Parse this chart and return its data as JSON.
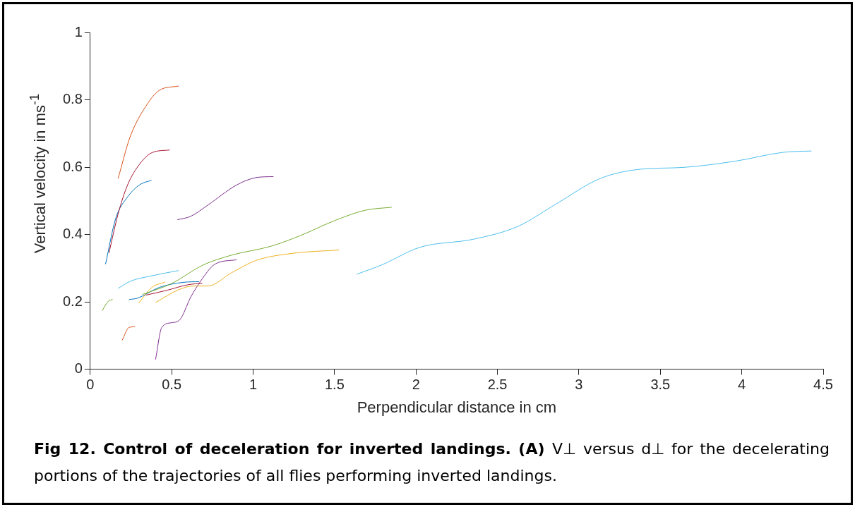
{
  "chart_data": {
    "type": "line",
    "xlabel": "Perpendicular distance in cm",
    "ylabel": "Vertical velocity in ms$^{-1}$",
    "annotations": [
      "Fig 12. Control of deceleration for inverted landings. (A)",
      "V⊥ versus d⊥ for the decelerating portions of the trajectories of all flies performing inverted landings."
    ],
    "xlim": [
      0,
      4.5
    ],
    "xticks": [
      0,
      0.5,
      1,
      1.5,
      2,
      2.5,
      3,
      3.5,
      4,
      4.5
    ],
    "ylim": [
      0,
      1
    ],
    "yticks": [
      0,
      0.2,
      0.4,
      0.6,
      0.8,
      1
    ],
    "grid": false,
    "legend": false,
    "marker": "none",
    "line_style": "solid",
    "series": [
      {
        "color": "#d95319",
        "x": [
          0.171,
          0.245,
          0.357,
          0.424,
          0.543
        ],
        "values": [
          0.566,
          0.69,
          0.792,
          0.828,
          0.841
        ]
      },
      {
        "color": "#a2142f",
        "x": [
          0.115,
          0.171,
          0.23,
          0.305,
          0.379,
          0.488
        ],
        "values": [
          0.345,
          0.461,
          0.548,
          0.61,
          0.643,
          0.651
        ]
      },
      {
        "color": "#0072bd",
        "x": [
          0.094,
          0.156,
          0.23,
          0.305,
          0.376
        ],
        "values": [
          0.312,
          0.447,
          0.512,
          0.548,
          0.561
        ]
      },
      {
        "color": "#7e2f8e",
        "x": [
          0.535,
          0.617,
          0.721,
          0.899,
          1.018,
          1.125
        ],
        "values": [
          0.444,
          0.454,
          0.487,
          0.547,
          0.569,
          0.572
        ]
      },
      {
        "color": "#77ac30",
        "x": [
          0.32,
          0.498,
          0.691,
          0.87,
          1.108,
          1.286,
          1.509,
          1.688,
          1.851
        ],
        "values": [
          0.222,
          0.254,
          0.309,
          0.339,
          0.365,
          0.396,
          0.443,
          0.472,
          0.481
        ]
      },
      {
        "color": "#edb120",
        "x": [
          0.401,
          0.543,
          0.632,
          0.721,
          0.87,
          1.018,
          1.241,
          1.528
        ],
        "values": [
          0.198,
          0.236,
          0.247,
          0.247,
          0.287,
          0.323,
          0.344,
          0.354
        ]
      },
      {
        "color": "#4dbeee",
        "x": [
          0.171,
          0.245,
          0.364,
          0.543
        ],
        "values": [
          0.24,
          0.261,
          0.276,
          0.293
        ]
      },
      {
        "color": "#edb120",
        "x": [
          0.297,
          0.379,
          0.461
        ],
        "values": [
          0.196,
          0.243,
          0.259
        ]
      },
      {
        "color": "#0072bd",
        "x": [
          0.238,
          0.29,
          0.424,
          0.573,
          0.669
        ],
        "values": [
          0.207,
          0.211,
          0.243,
          0.258,
          0.26
        ]
      },
      {
        "color": "#a2142f",
        "x": [
          0.342,
          0.468,
          0.602,
          0.688
        ],
        "values": [
          0.22,
          0.234,
          0.251,
          0.255
        ]
      },
      {
        "color": "#7e2f8e",
        "x": [
          0.401,
          0.439,
          0.498,
          0.55,
          0.617,
          0.677,
          0.766,
          0.899
        ],
        "values": [
          0.029,
          0.124,
          0.138,
          0.147,
          0.214,
          0.261,
          0.312,
          0.325
        ]
      },
      {
        "color": "#77ac30",
        "x": [
          0.074,
          0.111,
          0.138
        ],
        "values": [
          0.174,
          0.202,
          0.207
        ]
      },
      {
        "color": "#d95319",
        "x": [
          0.196,
          0.238,
          0.275
        ],
        "values": [
          0.086,
          0.124,
          0.126
        ]
      },
      {
        "color": "#4dbeee",
        "x": [
          1.636,
          1.791,
          2.024,
          2.353,
          2.625,
          2.858,
          3.129,
          3.381,
          3.633,
          3.963,
          4.254,
          4.428
        ],
        "values": [
          0.282,
          0.31,
          0.362,
          0.386,
          0.424,
          0.49,
          0.566,
          0.594,
          0.599,
          0.618,
          0.644,
          0.648
        ]
      }
    ]
  }
}
